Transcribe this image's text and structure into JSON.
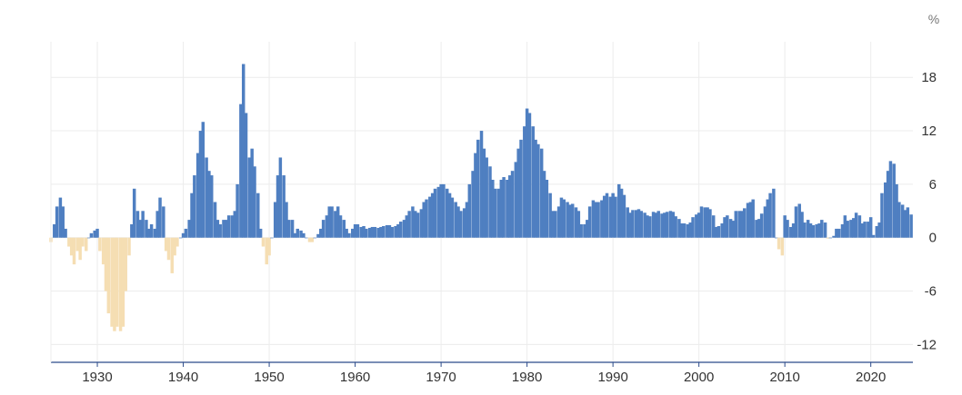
{
  "chart_data": {
    "type": "bar",
    "title": "",
    "xlabel": "",
    "ylabel": "",
    "unit": "%",
    "xlim": [
      1924.6,
      2024.9
    ],
    "ylim": [
      -14,
      22
    ],
    "x_ticks": [
      1930,
      1940,
      1950,
      1960,
      1970,
      1980,
      1990,
      2000,
      2010,
      2020
    ],
    "y_ticks": [
      -12,
      -6,
      0,
      6,
      12,
      18
    ],
    "grid": true,
    "colors": {
      "positive": "#4f7fc1",
      "negative": "#f5deb3",
      "grid": "#ececec",
      "axis": "#2b4a8a"
    },
    "series": [
      {
        "points": [
          [
            1924.6,
            -0.5
          ],
          [
            1925.0,
            1.5
          ],
          [
            1925.3,
            3.5
          ],
          [
            1925.7,
            4.5
          ],
          [
            1926.0,
            3.5
          ],
          [
            1926.3,
            1.0
          ],
          [
            1926.7,
            -1.0
          ],
          [
            1927.0,
            -2.0
          ],
          [
            1927.3,
            -3.0
          ],
          [
            1927.7,
            -1.5
          ],
          [
            1928.0,
            -2.5
          ],
          [
            1928.3,
            -1.0
          ],
          [
            1928.7,
            -1.5
          ],
          [
            1929.0,
            0.0
          ],
          [
            1929.3,
            0.5
          ],
          [
            1929.7,
            0.8
          ],
          [
            1930.0,
            1.0
          ],
          [
            1930.3,
            -1.5
          ],
          [
            1930.7,
            -3.0
          ],
          [
            1931.0,
            -6.0
          ],
          [
            1931.3,
            -8.5
          ],
          [
            1931.7,
            -10.0
          ],
          [
            1932.0,
            -10.5
          ],
          [
            1932.3,
            -10.0
          ],
          [
            1932.7,
            -10.5
          ],
          [
            1933.0,
            -10.0
          ],
          [
            1933.3,
            -6.0
          ],
          [
            1933.7,
            -2.0
          ],
          [
            1934.0,
            1.5
          ],
          [
            1934.3,
            5.5
          ],
          [
            1934.7,
            3.0
          ],
          [
            1935.0,
            2.0
          ],
          [
            1935.3,
            3.0
          ],
          [
            1935.7,
            2.0
          ],
          [
            1936.0,
            1.0
          ],
          [
            1936.3,
            1.5
          ],
          [
            1936.7,
            1.0
          ],
          [
            1937.0,
            3.0
          ],
          [
            1937.3,
            4.5
          ],
          [
            1937.7,
            3.5
          ],
          [
            1938.0,
            -1.5
          ],
          [
            1938.3,
            -2.5
          ],
          [
            1938.7,
            -4.0
          ],
          [
            1939.0,
            -2.0
          ],
          [
            1939.3,
            -1.0
          ],
          [
            1939.7,
            0.0
          ],
          [
            1940.0,
            0.5
          ],
          [
            1940.3,
            1.0
          ],
          [
            1940.7,
            2.0
          ],
          [
            1941.0,
            5.0
          ],
          [
            1941.3,
            7.0
          ],
          [
            1941.7,
            9.5
          ],
          [
            1942.0,
            12.0
          ],
          [
            1942.3,
            13.0
          ],
          [
            1942.7,
            9.0
          ],
          [
            1943.0,
            7.5
          ],
          [
            1943.3,
            7.0
          ],
          [
            1943.7,
            4.0
          ],
          [
            1944.0,
            2.0
          ],
          [
            1944.3,
            1.5
          ],
          [
            1944.7,
            2.0
          ],
          [
            1945.0,
            2.0
          ],
          [
            1945.3,
            2.5
          ],
          [
            1945.7,
            2.5
          ],
          [
            1946.0,
            3.0
          ],
          [
            1946.3,
            6.0
          ],
          [
            1946.7,
            15.0
          ],
          [
            1947.0,
            19.5
          ],
          [
            1947.3,
            14.0
          ],
          [
            1947.7,
            9.0
          ],
          [
            1948.0,
            10.0
          ],
          [
            1948.3,
            8.0
          ],
          [
            1948.7,
            5.0
          ],
          [
            1949.0,
            1.0
          ],
          [
            1949.3,
            -1.0
          ],
          [
            1949.7,
            -3.0
          ],
          [
            1950.0,
            -2.0
          ],
          [
            1950.3,
            0.0
          ],
          [
            1950.7,
            4.0
          ],
          [
            1951.0,
            7.0
          ],
          [
            1951.3,
            9.0
          ],
          [
            1951.7,
            7.0
          ],
          [
            1952.0,
            4.0
          ],
          [
            1952.3,
            2.0
          ],
          [
            1952.7,
            2.0
          ],
          [
            1953.0,
            0.5
          ],
          [
            1953.3,
            1.0
          ],
          [
            1953.7,
            0.8
          ],
          [
            1954.0,
            0.5
          ],
          [
            1954.3,
            0.0
          ],
          [
            1954.7,
            -0.5
          ],
          [
            1955.0,
            -0.5
          ],
          [
            1955.3,
            0.0
          ],
          [
            1955.7,
            0.4
          ],
          [
            1956.0,
            1.0
          ],
          [
            1956.3,
            2.0
          ],
          [
            1956.7,
            2.5
          ],
          [
            1957.0,
            3.5
          ],
          [
            1957.3,
            3.5
          ],
          [
            1957.7,
            3.0
          ],
          [
            1958.0,
            3.5
          ],
          [
            1958.3,
            2.5
          ],
          [
            1958.7,
            2.0
          ],
          [
            1959.0,
            1.0
          ],
          [
            1959.3,
            0.5
          ],
          [
            1959.7,
            1.0
          ],
          [
            1960.0,
            1.5
          ],
          [
            1960.3,
            1.5
          ],
          [
            1960.7,
            1.2
          ],
          [
            1961.0,
            1.3
          ],
          [
            1961.3,
            1.0
          ],
          [
            1961.7,
            1.1
          ],
          [
            1962.0,
            1.2
          ],
          [
            1962.3,
            1.2
          ],
          [
            1962.7,
            1.1
          ],
          [
            1963.0,
            1.2
          ],
          [
            1963.3,
            1.3
          ],
          [
            1963.7,
            1.4
          ],
          [
            1964.0,
            1.4
          ],
          [
            1964.3,
            1.2
          ],
          [
            1964.7,
            1.3
          ],
          [
            1965.0,
            1.5
          ],
          [
            1965.3,
            1.8
          ],
          [
            1965.7,
            2.0
          ],
          [
            1966.0,
            2.5
          ],
          [
            1966.3,
            3.0
          ],
          [
            1966.7,
            3.5
          ],
          [
            1967.0,
            3.0
          ],
          [
            1967.3,
            2.8
          ],
          [
            1967.7,
            3.2
          ],
          [
            1968.0,
            4.0
          ],
          [
            1968.3,
            4.3
          ],
          [
            1968.7,
            4.6
          ],
          [
            1969.0,
            5.0
          ],
          [
            1969.3,
            5.5
          ],
          [
            1969.7,
            5.7
          ],
          [
            1970.0,
            6.0
          ],
          [
            1970.3,
            6.0
          ],
          [
            1970.7,
            5.5
          ],
          [
            1971.0,
            5.0
          ],
          [
            1971.3,
            4.5
          ],
          [
            1971.7,
            4.0
          ],
          [
            1972.0,
            3.5
          ],
          [
            1972.3,
            3.0
          ],
          [
            1972.7,
            3.3
          ],
          [
            1973.0,
            4.0
          ],
          [
            1973.3,
            6.0
          ],
          [
            1973.7,
            7.5
          ],
          [
            1974.0,
            9.5
          ],
          [
            1974.3,
            11.0
          ],
          [
            1974.7,
            12.0
          ],
          [
            1975.0,
            10.0
          ],
          [
            1975.3,
            9.0
          ],
          [
            1975.7,
            8.0
          ],
          [
            1976.0,
            6.5
          ],
          [
            1976.3,
            5.5
          ],
          [
            1976.7,
            5.5
          ],
          [
            1977.0,
            6.5
          ],
          [
            1977.3,
            6.8
          ],
          [
            1977.7,
            6.5
          ],
          [
            1978.0,
            7.0
          ],
          [
            1978.3,
            7.5
          ],
          [
            1978.7,
            8.5
          ],
          [
            1979.0,
            10.0
          ],
          [
            1979.3,
            11.0
          ],
          [
            1979.7,
            12.5
          ],
          [
            1980.0,
            14.5
          ],
          [
            1980.3,
            14.0
          ],
          [
            1980.7,
            12.5
          ],
          [
            1981.0,
            11.0
          ],
          [
            1981.3,
            10.5
          ],
          [
            1981.7,
            10.0
          ],
          [
            1982.0,
            7.5
          ],
          [
            1982.3,
            6.5
          ],
          [
            1982.7,
            5.0
          ],
          [
            1983.0,
            3.0
          ],
          [
            1983.3,
            3.0
          ],
          [
            1983.7,
            3.5
          ],
          [
            1984.0,
            4.5
          ],
          [
            1984.3,
            4.3
          ],
          [
            1984.7,
            4.0
          ],
          [
            1985.0,
            3.7
          ],
          [
            1985.3,
            3.8
          ],
          [
            1985.7,
            3.4
          ],
          [
            1986.0,
            3.0
          ],
          [
            1986.3,
            1.5
          ],
          [
            1986.7,
            1.5
          ],
          [
            1987.0,
            2.0
          ],
          [
            1987.3,
            3.5
          ],
          [
            1987.7,
            4.2
          ],
          [
            1988.0,
            4.0
          ],
          [
            1988.3,
            4.0
          ],
          [
            1988.7,
            4.2
          ],
          [
            1989.0,
            4.7
          ],
          [
            1989.3,
            5.0
          ],
          [
            1989.7,
            4.6
          ],
          [
            1990.0,
            5.0
          ],
          [
            1990.3,
            4.6
          ],
          [
            1990.7,
            6.0
          ],
          [
            1991.0,
            5.5
          ],
          [
            1991.3,
            4.8
          ],
          [
            1991.7,
            3.4
          ],
          [
            1992.0,
            2.8
          ],
          [
            1992.3,
            3.1
          ],
          [
            1992.7,
            3.1
          ],
          [
            1993.0,
            3.2
          ],
          [
            1993.3,
            3.0
          ],
          [
            1993.7,
            2.8
          ],
          [
            1994.0,
            2.5
          ],
          [
            1994.3,
            2.4
          ],
          [
            1994.7,
            2.9
          ],
          [
            1995.0,
            2.8
          ],
          [
            1995.3,
            3.0
          ],
          [
            1995.7,
            2.7
          ],
          [
            1996.0,
            2.8
          ],
          [
            1996.3,
            2.9
          ],
          [
            1996.7,
            3.0
          ],
          [
            1997.0,
            2.9
          ],
          [
            1997.3,
            2.4
          ],
          [
            1997.7,
            2.1
          ],
          [
            1998.0,
            1.6
          ],
          [
            1998.3,
            1.6
          ],
          [
            1998.7,
            1.5
          ],
          [
            1999.0,
            1.7
          ],
          [
            1999.3,
            2.3
          ],
          [
            1999.7,
            2.6
          ],
          [
            2000.0,
            2.8
          ],
          [
            2000.3,
            3.5
          ],
          [
            2000.7,
            3.4
          ],
          [
            2001.0,
            3.4
          ],
          [
            2001.3,
            3.2
          ],
          [
            2001.7,
            2.5
          ],
          [
            2002.0,
            1.2
          ],
          [
            2002.3,
            1.3
          ],
          [
            2002.7,
            1.6
          ],
          [
            2003.0,
            2.3
          ],
          [
            2003.3,
            2.5
          ],
          [
            2003.7,
            2.1
          ],
          [
            2004.0,
            1.9
          ],
          [
            2004.3,
            3.0
          ],
          [
            2004.7,
            3.0
          ],
          [
            2005.0,
            3.0
          ],
          [
            2005.3,
            3.3
          ],
          [
            2005.7,
            3.9
          ],
          [
            2006.0,
            4.0
          ],
          [
            2006.3,
            4.3
          ],
          [
            2006.7,
            2.0
          ],
          [
            2007.0,
            2.1
          ],
          [
            2007.3,
            2.7
          ],
          [
            2007.7,
            3.5
          ],
          [
            2008.0,
            4.3
          ],
          [
            2008.3,
            5.0
          ],
          [
            2008.7,
            5.5
          ],
          [
            2009.0,
            0.0
          ],
          [
            2009.3,
            -1.3
          ],
          [
            2009.7,
            -2.0
          ],
          [
            2010.0,
            2.5
          ],
          [
            2010.3,
            2.0
          ],
          [
            2010.7,
            1.2
          ],
          [
            2011.0,
            1.6
          ],
          [
            2011.3,
            3.5
          ],
          [
            2011.7,
            3.8
          ],
          [
            2012.0,
            2.9
          ],
          [
            2012.3,
            1.7
          ],
          [
            2012.7,
            2.0
          ],
          [
            2013.0,
            1.6
          ],
          [
            2013.3,
            1.4
          ],
          [
            2013.7,
            1.5
          ],
          [
            2014.0,
            1.6
          ],
          [
            2014.3,
            2.0
          ],
          [
            2014.7,
            1.7
          ],
          [
            2015.0,
            -0.1
          ],
          [
            2015.3,
            0.0
          ],
          [
            2015.7,
            0.2
          ],
          [
            2016.0,
            1.0
          ],
          [
            2016.3,
            1.0
          ],
          [
            2016.7,
            1.5
          ],
          [
            2017.0,
            2.5
          ],
          [
            2017.3,
            1.9
          ],
          [
            2017.7,
            2.0
          ],
          [
            2018.0,
            2.2
          ],
          [
            2018.3,
            2.8
          ],
          [
            2018.7,
            2.5
          ],
          [
            2019.0,
            1.6
          ],
          [
            2019.3,
            1.8
          ],
          [
            2019.7,
            1.8
          ],
          [
            2020.0,
            2.3
          ],
          [
            2020.3,
            0.3
          ],
          [
            2020.7,
            1.3
          ],
          [
            2021.0,
            1.7
          ],
          [
            2021.3,
            5.0
          ],
          [
            2021.7,
            6.2
          ],
          [
            2022.0,
            7.5
          ],
          [
            2022.3,
            8.6
          ],
          [
            2022.7,
            8.3
          ],
          [
            2023.0,
            6.0
          ],
          [
            2023.3,
            4.0
          ],
          [
            2023.7,
            3.7
          ],
          [
            2024.0,
            3.1
          ],
          [
            2024.3,
            3.4
          ],
          [
            2024.7,
            2.6
          ]
        ]
      }
    ]
  }
}
